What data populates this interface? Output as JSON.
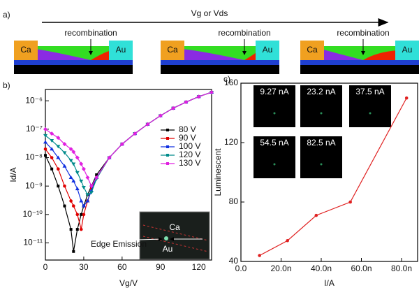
{
  "panel_a": {
    "label": "a)",
    "arrow": "Vg or Vds",
    "devices": [
      {
        "left": "Ca",
        "right": "Au",
        "note": "recombination"
      },
      {
        "left": "Ca",
        "right": "Au",
        "note": "recombination"
      },
      {
        "left": "Ca",
        "right": "Au",
        "note": "recombination"
      }
    ]
  },
  "chart_data": [
    {
      "type": "line",
      "panel": "b)",
      "xlabel": "Vg/V",
      "ylabel": "Id/A",
      "ylog": true,
      "xlim": [
        0,
        130
      ],
      "xticks": [
        0,
        30,
        60,
        90,
        120
      ],
      "ylim": [
        2.5e-12,
        2.5e-06
      ],
      "yticks": [
        {
          "value": 1e-11,
          "label": "10⁻¹¹"
        },
        {
          "value": 1e-10,
          "label": "10⁻¹⁰"
        },
        {
          "value": 1e-09,
          "label": "10⁻⁹"
        },
        {
          "value": 1e-08,
          "label": "10⁻⁸"
        },
        {
          "value": 1e-07,
          "label": "10⁻⁷"
        },
        {
          "value": 1e-06,
          "label": "10⁻⁶"
        }
      ],
      "x": [
        0,
        5,
        10,
        15,
        20,
        22,
        25,
        28,
        30,
        33,
        36,
        40,
        50,
        60,
        70,
        80,
        90,
        100,
        110,
        120,
        130
      ],
      "series": [
        {
          "name": "80 V",
          "color": "#000000",
          "values": [
            1.2e-08,
            4e-09,
            1e-09,
            2e-10,
            3e-11,
            5e-12,
            3e-11,
            1e-10,
            2e-10,
            5e-10,
            1e-09,
            2.5e-09,
            1e-08,
            3e-08,
            7e-08,
            1.5e-07,
            3e-07,
            5.5e-07,
            9e-07,
            1.4e-06,
            2e-06
          ]
        },
        {
          "name": "90 V",
          "color": "#e00000",
          "values": [
            2e-08,
            1e-08,
            4e-09,
            1e-09,
            3e-10,
            2e-10,
            1e-10,
            3e-11,
            1e-10,
            3e-10,
            8e-10,
            2e-09,
            1e-08,
            3e-08,
            7e-08,
            1.5e-07,
            3e-07,
            5.5e-07,
            9e-07,
            1.4e-06,
            2e-06
          ]
        },
        {
          "name": "100 V",
          "color": "#1030e0",
          "values": [
            3.5e-08,
            2e-08,
            1e-08,
            5e-09,
            2e-09,
            1.5e-09,
            8e-10,
            3e-10,
            2e-10,
            3e-10,
            7e-10,
            2e-09,
            1e-08,
            3e-08,
            7e-08,
            1.5e-07,
            3e-07,
            5.5e-07,
            9e-07,
            1.4e-06,
            2e-06
          ]
        },
        {
          "name": "120 V",
          "color": "#008b8b",
          "values": [
            6e-08,
            4e-08,
            2.5e-08,
            1.5e-08,
            8e-09,
            6e-09,
            3e-09,
            1.5e-09,
            9e-10,
            5e-10,
            6e-10,
            1.8e-09,
            1e-08,
            3e-08,
            7e-08,
            1.5e-07,
            3e-07,
            5.5e-07,
            9e-07,
            1.4e-06,
            2e-06
          ]
        },
        {
          "name": "130 V",
          "color": "#e020e0",
          "values": [
            1e-07,
            7e-08,
            5e-08,
            3e-08,
            2e-08,
            1.6e-08,
            1e-08,
            6e-09,
            4e-09,
            2e-09,
            1e-09,
            2e-09,
            1e-08,
            3e-08,
            7e-08,
            1.5e-07,
            3e-07,
            5.5e-07,
            9e-07,
            1.4e-06,
            2e-06
          ]
        }
      ],
      "inset": {
        "top": "Ca",
        "left": "Edge Emission",
        "bottom": "Au"
      }
    },
    {
      "type": "line",
      "panel": "c)",
      "xlabel": "I/A",
      "ylabel": "Luminescent",
      "xlim": [
        0,
        8.8e-08
      ],
      "xticks": [
        {
          "value": 0,
          "label": "0.0"
        },
        {
          "value": 2e-08,
          "label": "20.0n"
        },
        {
          "value": 4e-08,
          "label": "40.0n"
        },
        {
          "value": 6e-08,
          "label": "60.0n"
        },
        {
          "value": 8e-08,
          "label": "80.0n"
        }
      ],
      "ylim": [
        40,
        160
      ],
      "yticks": [
        40,
        80,
        120,
        160
      ],
      "x": [
        9.27e-09,
        2.32e-08,
        3.75e-08,
        5.45e-08,
        8.25e-08
      ],
      "series": [
        {
          "name": "Luminescent",
          "color": "#e02020",
          "values": [
            44,
            54,
            71,
            80,
            150
          ]
        }
      ],
      "insets": [
        "9.27 nA",
        "23.2 nA",
        "37.5 nA",
        "54.5 nA",
        "82.5 nA"
      ]
    }
  ]
}
